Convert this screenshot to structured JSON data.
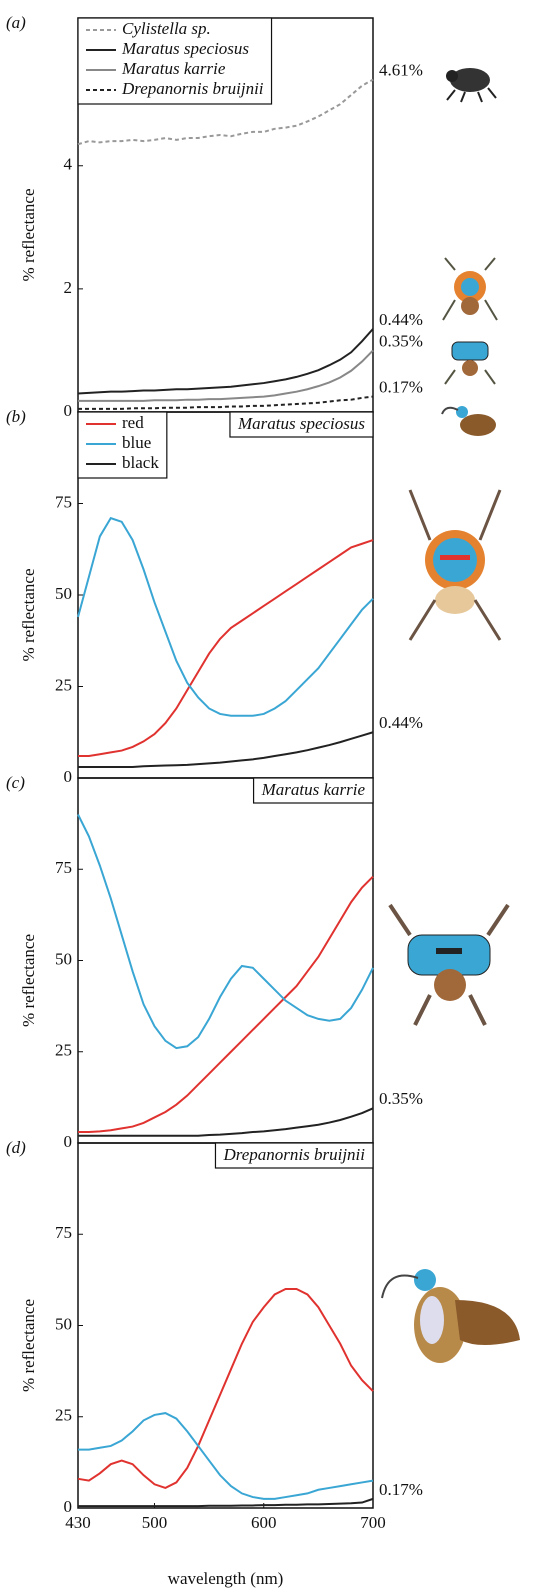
{
  "chart_data": [
    {
      "type": "line",
      "panel": "(a)",
      "ylabel": "% reflectance",
      "x": [
        430,
        440,
        450,
        460,
        470,
        480,
        490,
        500,
        510,
        520,
        530,
        540,
        550,
        560,
        570,
        580,
        590,
        600,
        610,
        620,
        630,
        640,
        650,
        660,
        670,
        680,
        690,
        700
      ],
      "xlim": [
        430,
        700
      ],
      "ylim": [
        0,
        6.4
      ],
      "yticks": [
        0,
        2,
        4
      ],
      "legend": "top-left",
      "series": [
        {
          "name": "Cylistella sp.",
          "color": "#999999",
          "dashed": true,
          "end_label": "4.61%",
          "values": [
            4.35,
            4.4,
            4.38,
            4.4,
            4.4,
            4.42,
            4.4,
            4.42,
            4.45,
            4.42,
            4.45,
            4.45,
            4.48,
            4.5,
            4.48,
            4.52,
            4.55,
            4.55,
            4.6,
            4.62,
            4.65,
            4.72,
            4.8,
            4.9,
            5.0,
            5.15,
            5.3,
            5.4
          ]
        },
        {
          "name": "Maratus speciosus",
          "color": "#222222",
          "dashed": false,
          "end_label": "0.44%",
          "values": [
            0.3,
            0.31,
            0.32,
            0.33,
            0.33,
            0.34,
            0.35,
            0.35,
            0.36,
            0.37,
            0.37,
            0.38,
            0.39,
            0.4,
            0.41,
            0.43,
            0.45,
            0.47,
            0.5,
            0.53,
            0.57,
            0.62,
            0.68,
            0.76,
            0.85,
            0.97,
            1.15,
            1.35
          ]
        },
        {
          "name": "Maratus karrie",
          "color": "#888888",
          "dashed": false,
          "end_label": "0.35%",
          "values": [
            0.18,
            0.18,
            0.18,
            0.18,
            0.18,
            0.18,
            0.18,
            0.19,
            0.19,
            0.19,
            0.2,
            0.2,
            0.21,
            0.21,
            0.22,
            0.23,
            0.24,
            0.25,
            0.27,
            0.3,
            0.33,
            0.37,
            0.42,
            0.48,
            0.56,
            0.67,
            0.82,
            1.0
          ]
        },
        {
          "name": "Drepanornis bruijnii",
          "color": "#222222",
          "dashed": true,
          "end_label": "0.17%",
          "values": [
            0.05,
            0.05,
            0.05,
            0.05,
            0.05,
            0.06,
            0.06,
            0.06,
            0.07,
            0.07,
            0.07,
            0.08,
            0.08,
            0.08,
            0.09,
            0.09,
            0.1,
            0.1,
            0.11,
            0.12,
            0.13,
            0.14,
            0.15,
            0.17,
            0.19,
            0.2,
            0.23,
            0.25
          ]
        }
      ]
    },
    {
      "type": "line",
      "panel": "(b)",
      "title": "Maratus speciosus",
      "ylabel": "% reflectance",
      "x": [
        430,
        440,
        450,
        460,
        470,
        480,
        490,
        500,
        510,
        520,
        530,
        540,
        550,
        560,
        570,
        580,
        590,
        600,
        610,
        620,
        630,
        640,
        650,
        660,
        670,
        680,
        690,
        700
      ],
      "xlim": [
        430,
        700
      ],
      "ylim": [
        0,
        100
      ],
      "yticks": [
        0,
        25,
        50,
        75
      ],
      "legend": "top-left",
      "series": [
        {
          "name": "red",
          "color": "#e0322f",
          "dashed": false,
          "values": [
            6,
            6,
            6.5,
            7,
            7.5,
            8.5,
            10,
            12,
            15,
            19,
            24,
            29,
            34,
            38,
            41,
            43,
            45,
            47,
            49,
            51,
            53,
            55,
            57,
            59,
            61,
            63,
            64,
            65
          ]
        },
        {
          "name": "blue",
          "color": "#3aa6d4",
          "dashed": false,
          "values": [
            44,
            55,
            66,
            71,
            70,
            65,
            57,
            48,
            40,
            32,
            26,
            22,
            19,
            17.5,
            17,
            17,
            17,
            17.5,
            19,
            21,
            24,
            27,
            30,
            34,
            38,
            42,
            46,
            49
          ]
        },
        {
          "name": "black",
          "color": "#222222",
          "dashed": false,
          "end_label": "0.44%",
          "values": [
            3,
            3,
            3,
            3,
            3,
            3,
            3.2,
            3.3,
            3.4,
            3.5,
            3.6,
            3.8,
            4,
            4.2,
            4.5,
            4.8,
            5.1,
            5.5,
            6,
            6.5,
            7,
            7.6,
            8.3,
            9,
            9.8,
            10.7,
            11.6,
            12.5
          ]
        }
      ]
    },
    {
      "type": "line",
      "panel": "(c)",
      "title": "Maratus karrie",
      "ylabel": "% reflectance",
      "x": [
        430,
        440,
        450,
        460,
        470,
        480,
        490,
        500,
        510,
        520,
        530,
        540,
        550,
        560,
        570,
        580,
        590,
        600,
        610,
        620,
        630,
        640,
        650,
        660,
        670,
        680,
        690,
        700
      ],
      "xlim": [
        430,
        700
      ],
      "ylim": [
        0,
        100
      ],
      "yticks": [
        0,
        25,
        50,
        75
      ],
      "series": [
        {
          "color": "#e0322f",
          "dashed": false,
          "values": [
            3,
            3,
            3.2,
            3.5,
            4,
            4.5,
            5.5,
            7,
            8.5,
            10.5,
            13,
            16,
            19,
            22,
            25,
            28,
            31,
            34,
            37,
            40,
            43,
            47,
            51,
            56,
            61,
            66,
            70,
            73
          ]
        },
        {
          "color": "#3aa6d4",
          "dashed": false,
          "values": [
            90,
            84,
            76,
            67,
            57,
            47,
            38,
            32,
            28,
            26,
            26.5,
            29,
            34,
            40,
            45,
            48.5,
            48,
            45,
            42,
            39,
            37,
            35,
            34,
            33.5,
            34,
            37,
            42,
            48
          ]
        },
        {
          "color": "#222222",
          "dashed": false,
          "end_label": "0.35%",
          "values": [
            2,
            2,
            2,
            2,
            2,
            2,
            2,
            2,
            2,
            2,
            2,
            2,
            2.2,
            2.3,
            2.5,
            2.7,
            3,
            3.2,
            3.5,
            3.8,
            4.2,
            4.6,
            5,
            5.6,
            6.3,
            7.2,
            8.2,
            9.5
          ]
        }
      ]
    },
    {
      "type": "line",
      "panel": "(d)",
      "title": "Drepanornis bruijnii",
      "ylabel": "% reflectance",
      "xlabel": "wavelength (nm)",
      "x": [
        430,
        440,
        450,
        460,
        470,
        480,
        490,
        500,
        510,
        520,
        530,
        540,
        550,
        560,
        570,
        580,
        590,
        600,
        610,
        620,
        630,
        640,
        650,
        660,
        670,
        680,
        690,
        700
      ],
      "xlim": [
        430,
        700
      ],
      "xticks": [
        430,
        500,
        600,
        700
      ],
      "ylim": [
        0,
        100
      ],
      "yticks": [
        0,
        25,
        50,
        75
      ],
      "series": [
        {
          "color": "#e0322f",
          "dashed": false,
          "values": [
            8,
            7.5,
            9.5,
            12,
            13,
            12,
            9,
            6.5,
            5.5,
            7,
            11,
            17,
            24,
            31,
            38,
            45,
            51,
            55,
            58.5,
            60,
            60,
            58.5,
            55,
            50,
            45,
            39,
            35,
            32
          ]
        },
        {
          "color": "#3aa6d4",
          "dashed": false,
          "values": [
            16,
            16,
            16.5,
            17,
            18.5,
            21,
            24,
            25.5,
            26,
            24.5,
            21,
            17,
            13,
            9,
            6,
            4,
            3,
            2.5,
            2.5,
            3,
            3.5,
            4,
            5,
            5.5,
            6,
            6.5,
            7,
            7.5
          ]
        },
        {
          "color": "#222222",
          "dashed": false,
          "end_label": "0.17%",
          "values": [
            0.5,
            0.5,
            0.5,
            0.5,
            0.5,
            0.5,
            0.5,
            0.5,
            0.5,
            0.5,
            0.5,
            0.5,
            0.6,
            0.6,
            0.6,
            0.7,
            0.7,
            0.8,
            0.8,
            0.9,
            0.9,
            1,
            1,
            1.1,
            1.2,
            1.3,
            1.5,
            2.5
          ]
        }
      ]
    }
  ]
}
